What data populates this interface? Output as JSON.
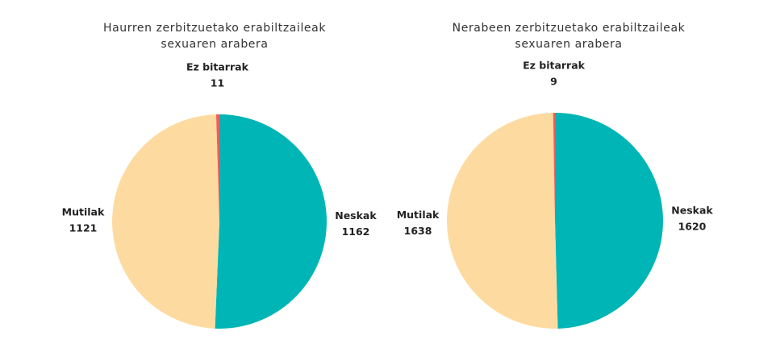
{
  "chart_data": [
    {
      "type": "pie",
      "title": [
        "Haurren zerbitzuetako erabiltzaileak",
        "sexuaren arabera"
      ],
      "categories": [
        "Neskak",
        "Mutilak",
        "Ez bitarrak"
      ],
      "values": [
        1162,
        1121,
        11
      ],
      "colors": [
        "#00b5b5",
        "#fddba0",
        "#f25c5c"
      ]
    },
    {
      "type": "pie",
      "title": [
        "Nerabeen zerbitzuetako erabiltzaileak",
        "sexuaren arabera"
      ],
      "categories": [
        "Neskak",
        "Mutilak",
        "Ez bitarrak"
      ],
      "values": [
        1620,
        1638,
        9
      ],
      "colors": [
        "#00b5b5",
        "#fddba0",
        "#f25c5c"
      ]
    }
  ]
}
